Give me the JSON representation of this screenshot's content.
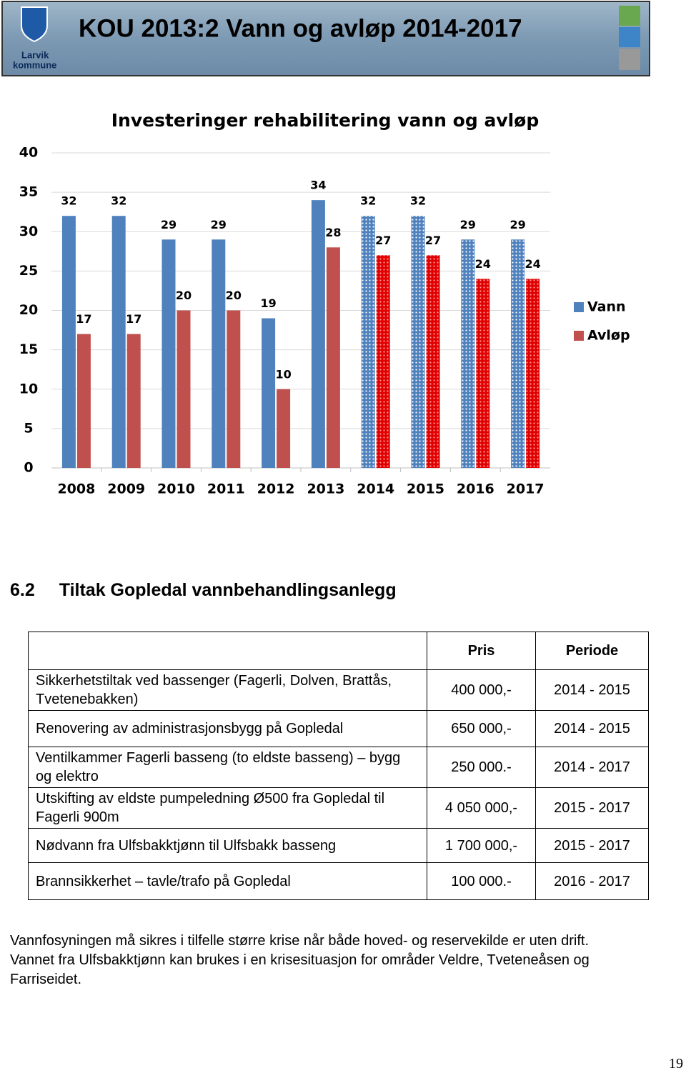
{
  "header": {
    "logo_text": [
      "Larvik",
      "kommune"
    ],
    "title": "KOU 2013:2 Vann og avløp 2014-2017"
  },
  "chart_data": {
    "type": "bar",
    "title": "Investeringer rehabilitering vann og avløp",
    "categories": [
      "2008",
      "2009",
      "2010",
      "2011",
      "2012",
      "2013",
      "2014",
      "2015",
      "2016",
      "2017"
    ],
    "series": [
      {
        "name": "Vann",
        "color": "#4f81bd",
        "values": [
          32,
          32,
          29,
          29,
          19,
          34,
          32,
          32,
          29,
          29
        ]
      },
      {
        "name": "Avløp",
        "color": "#c0504d",
        "values": [
          17,
          17,
          20,
          20,
          10,
          28,
          27,
          27,
          24,
          24
        ]
      }
    ],
    "patterned": [
      false,
      false,
      false,
      false,
      false,
      false,
      true,
      true,
      true,
      true
    ],
    "ylim": [
      0,
      40
    ],
    "yticks": [
      0,
      5,
      10,
      15,
      20,
      25,
      30,
      35,
      40
    ],
    "grid": true,
    "legend": "right"
  },
  "section": {
    "number": "6.2",
    "title": "Tiltak Gopledal vannbehandlingsanlegg"
  },
  "table": {
    "columns": [
      "Pris",
      "Periode"
    ],
    "rows": [
      [
        "Sikkerhetstiltak ved bassenger (Fagerli, Dolven, Brattås, Tvetenebakken)",
        "400 000,-",
        "2014 - 2015"
      ],
      [
        "Renovering av administrasjonsbygg på Gopledal",
        "650 000,-",
        "2014 - 2015"
      ],
      [
        "Ventilkammer Fagerli basseng (to eldste basseng) – bygg og elektro",
        "250 000.-",
        "2014 - 2017"
      ],
      [
        "Utskifting av eldste pumpeledning Ø500 fra Gopledal til Fagerli 900m",
        "4 050 000,-",
        "2015 - 2017"
      ],
      [
        "Nødvann fra Ulfsbakktjønn til Ulfsbakk basseng",
        "1 700 000,-",
        "2015 - 2017"
      ],
      [
        "Brannsikkerhet – tavle/trafo på Gopledal",
        "100 000.-",
        "2016 - 2017"
      ]
    ]
  },
  "paragraphs": [
    "Vannfosyningen må sikres i tilfelle større krise når både hoved- og reservekilde er uten drift.",
    "Vannet fra Ulfsbakktjønn kan brukes i en krisesituasjon for områder Veldre, Tveteneåsen og Farriseidet."
  ],
  "page_number": "19"
}
